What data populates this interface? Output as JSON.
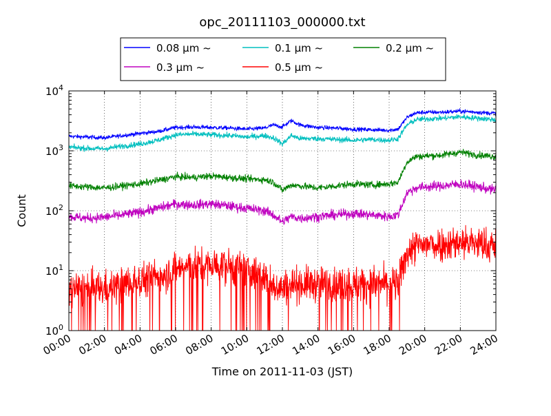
{
  "chart_data": {
    "type": "line",
    "title": "opc_20111103_000000.txt",
    "xlabel": "Time on 2011-11-03 (JST)",
    "ylabel": "Count",
    "y_scale": "log",
    "ylim": [
      1,
      10000
    ],
    "xlim": [
      "00:00",
      "24:00"
    ],
    "x_ticks": [
      "00:00",
      "02:00",
      "04:00",
      "06:00",
      "08:00",
      "10:00",
      "12:00",
      "14:00",
      "16:00",
      "18:00",
      "20:00",
      "22:00",
      "24:00"
    ],
    "y_ticks": [
      {
        "base": "10",
        "exp": "0"
      },
      {
        "base": "10",
        "exp": "1"
      },
      {
        "base": "10",
        "exp": "2"
      },
      {
        "base": "10",
        "exp": "3"
      },
      {
        "base": "10",
        "exp": "4"
      }
    ],
    "grid": true,
    "legend_position": "top-center",
    "x_hours": [
      0,
      1,
      2,
      3,
      4,
      5,
      6,
      7,
      8,
      9,
      10,
      11,
      11.5,
      12,
      12.5,
      13,
      14,
      15,
      16,
      17,
      18,
      18.5,
      19,
      19.5,
      20,
      21,
      22,
      23,
      24
    ],
    "series": [
      {
        "name": "0.08 μm ~",
        "color": "#0000ff",
        "noise": 0.03,
        "values": [
          1750,
          1700,
          1650,
          1800,
          1950,
          2100,
          2450,
          2500,
          2450,
          2400,
          2300,
          2400,
          2700,
          2500,
          3200,
          2700,
          2450,
          2400,
          2300,
          2250,
          2200,
          2300,
          3600,
          4300,
          4400,
          4400,
          4600,
          4400,
          4200
        ]
      },
      {
        "name": "0.1 μm ~",
        "color": "#00bfbf",
        "noise": 0.04,
        "values": [
          1150,
          1100,
          1080,
          1200,
          1300,
          1500,
          1850,
          1900,
          1850,
          1800,
          1700,
          1800,
          1650,
          1300,
          1800,
          1600,
          1600,
          1550,
          1500,
          1550,
          1500,
          1600,
          2700,
          3300,
          3400,
          3500,
          3700,
          3500,
          3300
        ]
      },
      {
        "name": "0.2 μm ~",
        "color": "#008000",
        "noise": 0.05,
        "values": [
          260,
          250,
          240,
          260,
          280,
          320,
          370,
          360,
          380,
          360,
          340,
          330,
          300,
          220,
          270,
          260,
          240,
          260,
          280,
          270,
          280,
          300,
          650,
          800,
          820,
          850,
          950,
          850,
          800
        ]
      },
      {
        "name": "0.3 μm ~",
        "color": "#bf00bf",
        "noise": 0.07,
        "values": [
          80,
          75,
          78,
          85,
          95,
          110,
          130,
          125,
          130,
          120,
          110,
          100,
          85,
          65,
          80,
          75,
          80,
          85,
          90,
          85,
          80,
          85,
          200,
          240,
          250,
          260,
          280,
          250,
          220
        ]
      },
      {
        "name": "0.5 μm ~",
        "color": "#ff0000",
        "noise": 0.25,
        "values": [
          5,
          5,
          5,
          6,
          7,
          8,
          11,
          12,
          12,
          12,
          10,
          8,
          6,
          5,
          6,
          6,
          6,
          6,
          6,
          6,
          6,
          6,
          20,
          25,
          27,
          28,
          30,
          28,
          25
        ]
      }
    ]
  }
}
